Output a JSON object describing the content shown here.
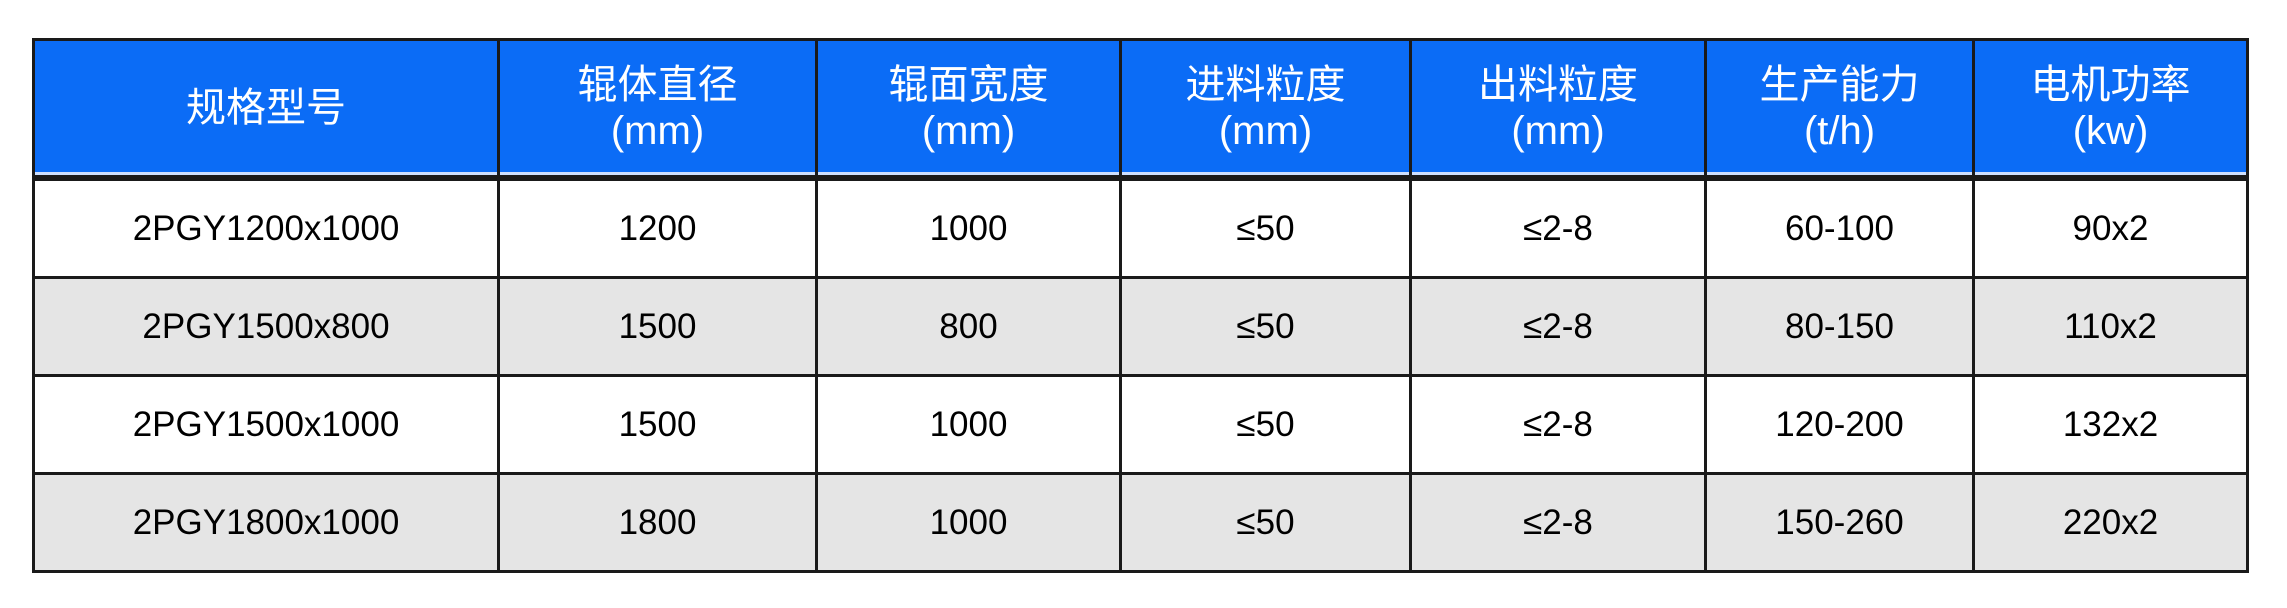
{
  "table": {
    "header_color": "#0b6cf6",
    "headers": [
      {
        "label": "规格型号",
        "unit": ""
      },
      {
        "label": "辊体直径",
        "unit": "(mm)"
      },
      {
        "label": "辊面宽度",
        "unit": "(mm)"
      },
      {
        "label": "进料粒度",
        "unit": "(mm)"
      },
      {
        "label": "出料粒度",
        "unit": "(mm)"
      },
      {
        "label": "生产能力",
        "unit": "(t/h)"
      },
      {
        "label": "电机功率",
        "unit": "(kw)"
      }
    ],
    "rows": [
      [
        "2PGY1200x1000",
        "1200",
        "1000",
        "≤50",
        "≤2-8",
        "60-100",
        "90x2"
      ],
      [
        "2PGY1500x800",
        "1500",
        "800",
        "≤50",
        "≤2-8",
        "80-150",
        "110x2"
      ],
      [
        "2PGY1500x1000",
        "1500",
        "1000",
        "≤50",
        "≤2-8",
        "120-200",
        "132x2"
      ],
      [
        "2PGY1800x1000",
        "1800",
        "1000",
        "≤50",
        "≤2-8",
        "150-260",
        "220x2"
      ]
    ]
  }
}
